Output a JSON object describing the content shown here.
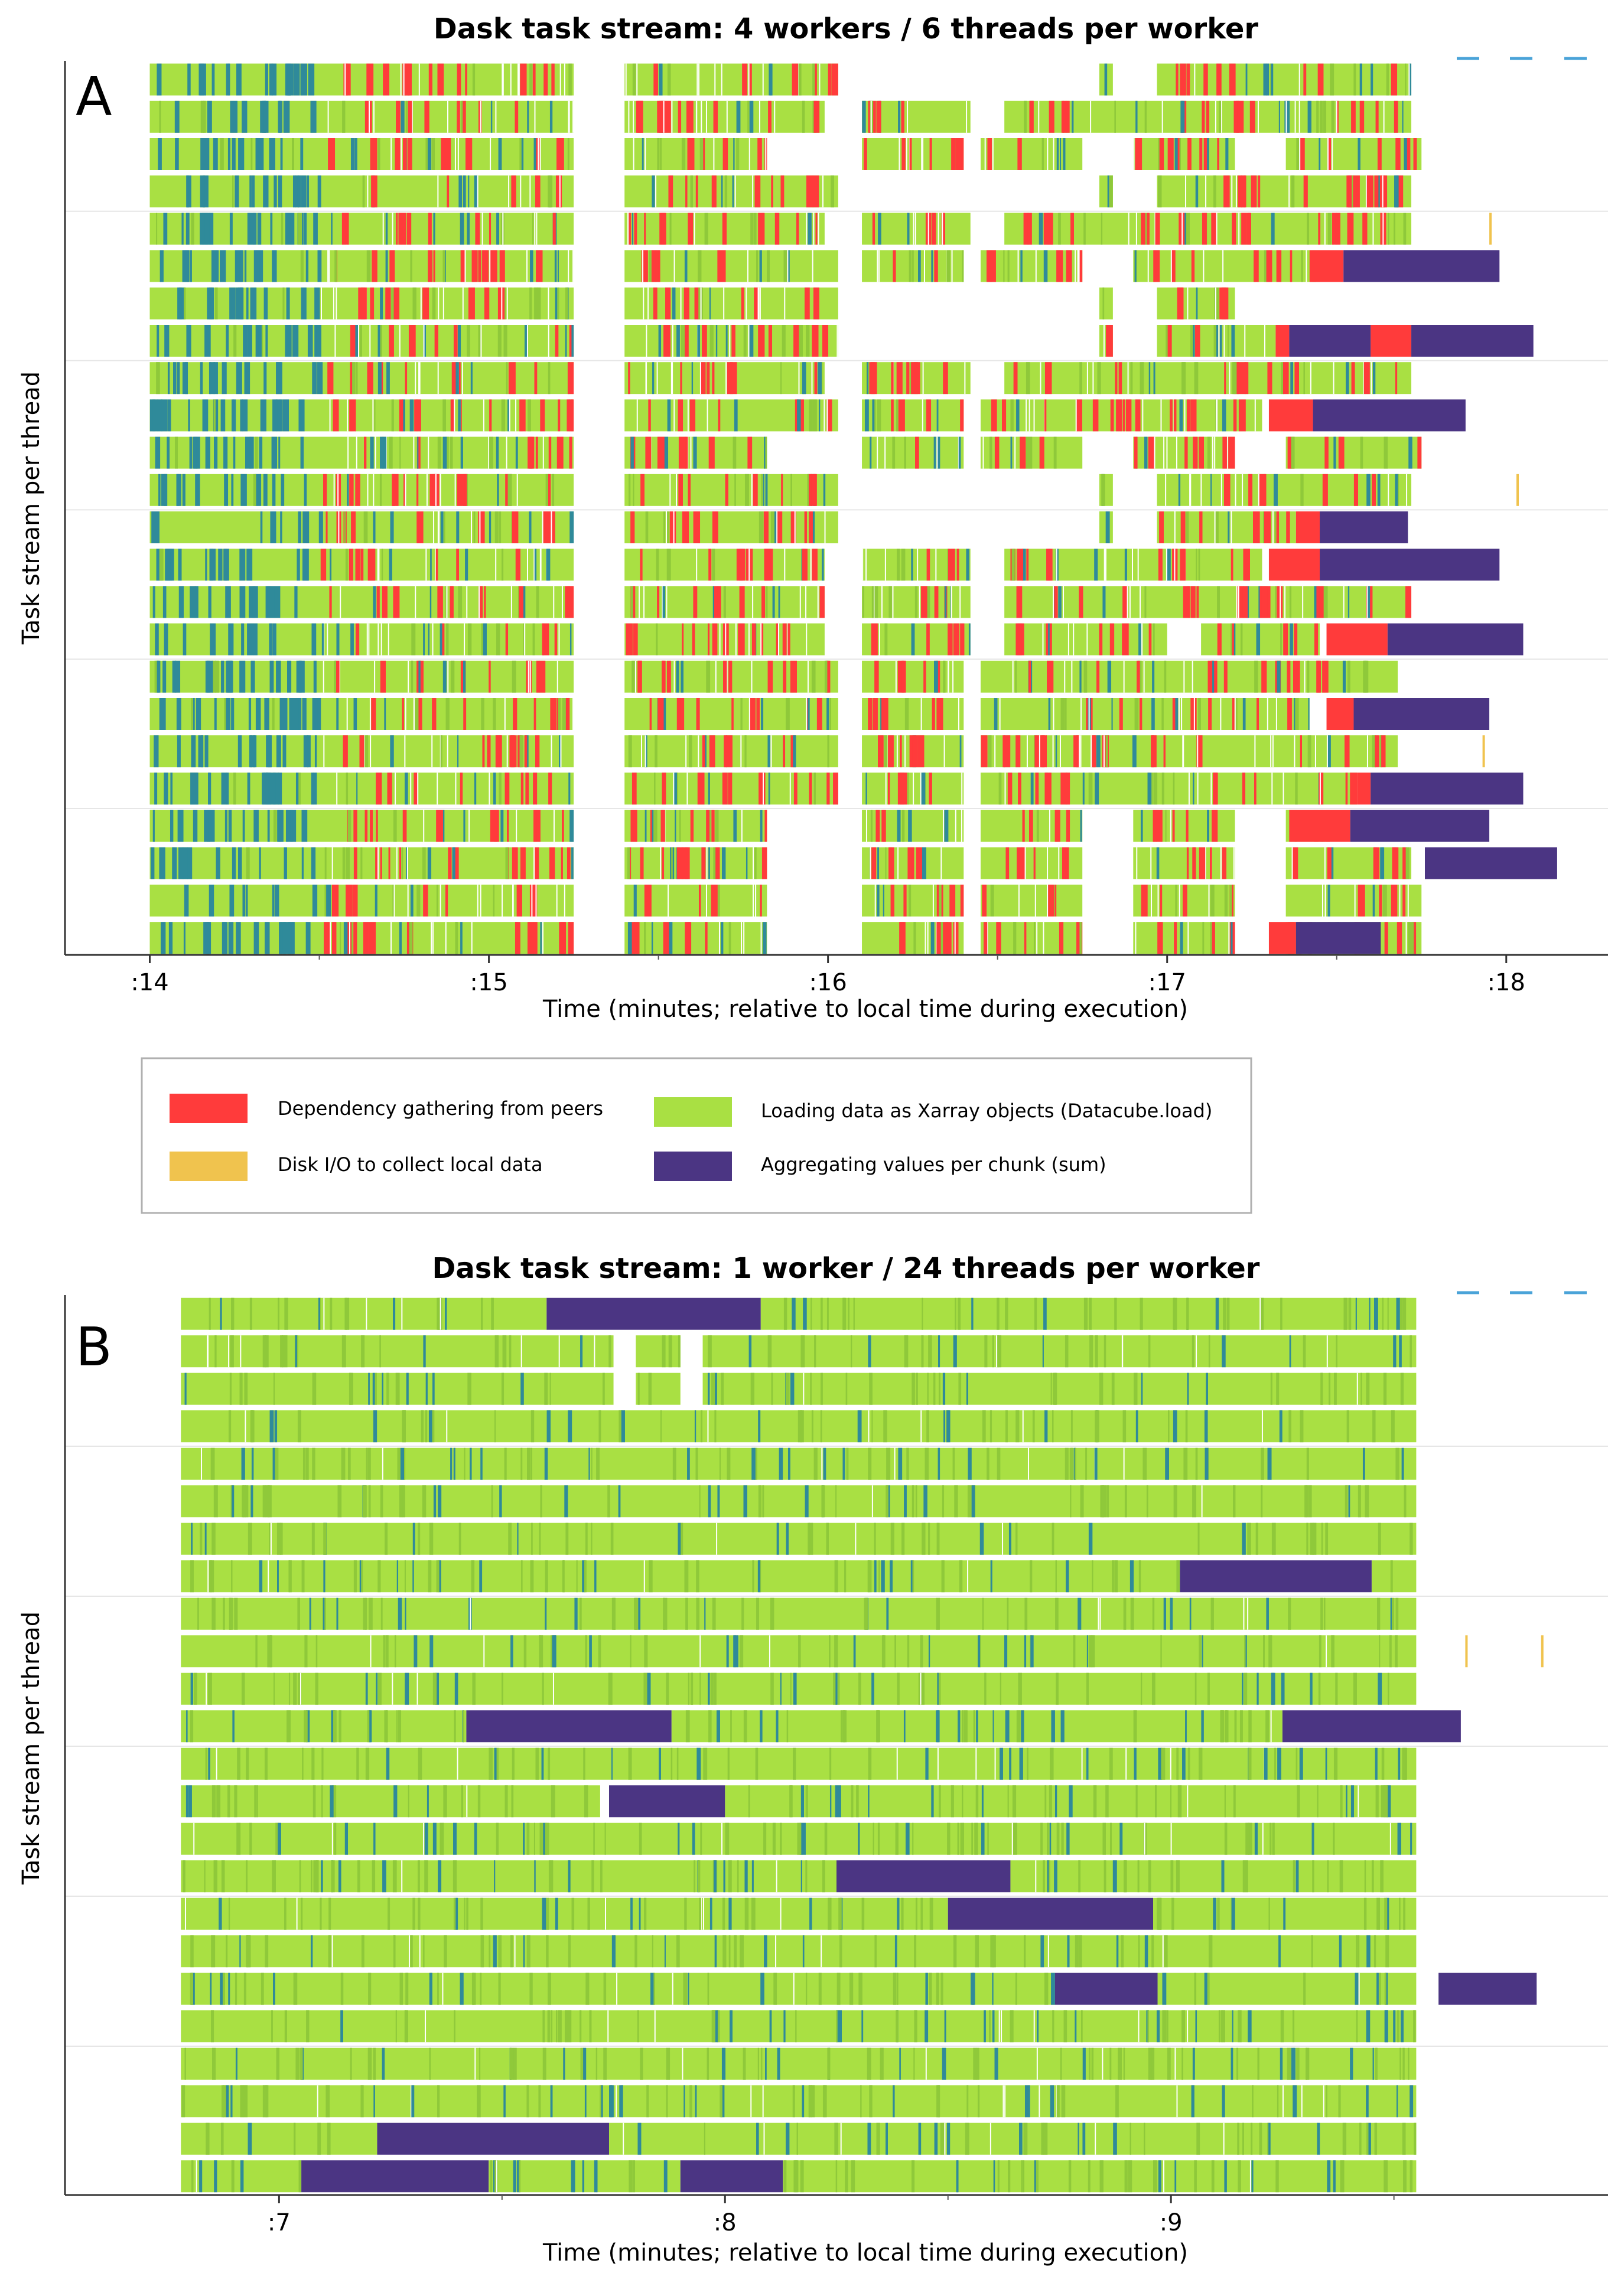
{
  "legend": {
    "items": [
      {
        "label": "Dependency gathering from peers",
        "color": "#ff3b3b"
      },
      {
        "label": "Disk I/O to collect local data",
        "color": "#f0c34e"
      },
      {
        "label": "Loading data as Xarray objects (Datacube.load)",
        "color": "#a9e043"
      },
      {
        "label": "Aggregating values per chunk  (sum)",
        "color": "#4b3583"
      }
    ]
  },
  "colors": {
    "load": "#a9e043",
    "load_dark": "#8fc93a",
    "transfer": "#ff3b3b",
    "disk": "#f0c34e",
    "sum": "#4b3583",
    "other": "#2f8a9a",
    "axis": "#333333",
    "grid": "#e6e6e6"
  },
  "chart_data": [
    {
      "id": "A",
      "type": "bar",
      "title": "Dask task stream: 4 workers / 6 threads per worker",
      "panel_label": "A",
      "xlabel": "Time (minutes; relative to local time during execution)",
      "ylabel": "Task stream per thread",
      "xlim": [
        13.75,
        18.3
      ],
      "xticks": [
        14,
        15,
        16,
        17,
        18
      ],
      "xtick_labels": [
        ":14",
        ":15",
        ":16",
        ":17",
        ":18"
      ],
      "rows": 24,
      "load_segments": [
        [
          [
            14.0,
            15.25
          ],
          [
            15.4,
            16.03
          ],
          [
            16.8,
            16.84
          ],
          [
            16.97,
            17.72
          ]
        ],
        [
          [
            14.0,
            15.25
          ],
          [
            15.4,
            15.99
          ],
          [
            16.1,
            16.42
          ],
          [
            16.52,
            17.72
          ]
        ],
        [
          [
            14.0,
            15.25
          ],
          [
            15.4,
            15.82
          ],
          [
            16.1,
            16.4
          ],
          [
            16.45,
            16.75
          ],
          [
            16.9,
            17.2
          ],
          [
            17.35,
            17.75
          ]
        ],
        [
          [
            14.0,
            15.25
          ],
          [
            15.4,
            16.03
          ],
          [
            16.8,
            16.84
          ],
          [
            16.97,
            17.72
          ]
        ],
        [
          [
            14.0,
            15.25
          ],
          [
            15.4,
            15.99
          ],
          [
            16.1,
            16.42
          ],
          [
            16.52,
            17.72
          ]
        ],
        [
          [
            14.0,
            15.25
          ],
          [
            15.4,
            16.03
          ],
          [
            16.1,
            16.4
          ],
          [
            16.45,
            16.75
          ],
          [
            16.9,
            17.45
          ]
        ],
        [
          [
            14.0,
            15.25
          ],
          [
            15.4,
            16.03
          ],
          [
            16.8,
            16.84
          ],
          [
            16.97,
            17.2
          ]
        ],
        [
          [
            14.0,
            15.25
          ],
          [
            15.4,
            16.03
          ],
          [
            16.8,
            16.84
          ],
          [
            16.97,
            17.32
          ]
        ],
        [
          [
            14.0,
            15.25
          ],
          [
            15.4,
            15.99
          ],
          [
            16.1,
            16.42
          ],
          [
            16.52,
            17.72
          ]
        ],
        [
          [
            14.0,
            15.25
          ],
          [
            15.4,
            16.03
          ],
          [
            16.1,
            16.4
          ],
          [
            16.45,
            17.28
          ]
        ],
        [
          [
            14.0,
            15.25
          ],
          [
            15.4,
            15.82
          ],
          [
            16.1,
            16.4
          ],
          [
            16.45,
            16.75
          ],
          [
            16.9,
            17.2
          ],
          [
            17.35,
            17.75
          ]
        ],
        [
          [
            14.0,
            15.25
          ],
          [
            15.4,
            16.03
          ],
          [
            16.8,
            16.84
          ],
          [
            16.97,
            17.72
          ]
        ],
        [
          [
            14.0,
            15.25
          ],
          [
            15.4,
            16.03
          ],
          [
            16.8,
            16.84
          ],
          [
            16.97,
            17.38
          ]
        ],
        [
          [
            14.0,
            15.25
          ],
          [
            15.4,
            15.99
          ],
          [
            16.1,
            16.42
          ],
          [
            16.52,
            17.28
          ]
        ],
        [
          [
            14.0,
            15.25
          ],
          [
            15.4,
            15.99
          ],
          [
            16.1,
            16.42
          ],
          [
            16.52,
            17.72
          ]
        ],
        [
          [
            14.0,
            15.25
          ],
          [
            15.4,
            15.99
          ],
          [
            16.1,
            16.42
          ],
          [
            16.52,
            17.0
          ],
          [
            17.1,
            17.45
          ]
        ],
        [
          [
            14.0,
            15.25
          ],
          [
            15.4,
            16.03
          ],
          [
            16.1,
            16.4
          ],
          [
            16.45,
            17.68
          ]
        ],
        [
          [
            14.0,
            15.25
          ],
          [
            15.4,
            16.03
          ],
          [
            16.1,
            16.4
          ],
          [
            16.45,
            17.42
          ]
        ],
        [
          [
            14.0,
            15.25
          ],
          [
            15.4,
            16.03
          ],
          [
            16.1,
            16.4
          ],
          [
            16.45,
            17.68
          ]
        ],
        [
          [
            14.0,
            15.25
          ],
          [
            15.4,
            16.03
          ],
          [
            16.1,
            16.4
          ],
          [
            16.45,
            17.56
          ]
        ],
        [
          [
            14.0,
            15.25
          ],
          [
            15.4,
            15.82
          ],
          [
            16.1,
            16.4
          ],
          [
            16.45,
            16.75
          ],
          [
            16.9,
            17.2
          ],
          [
            17.35,
            17.48
          ]
        ],
        [
          [
            14.0,
            15.25
          ],
          [
            15.4,
            15.82
          ],
          [
            16.1,
            16.4
          ],
          [
            16.45,
            16.75
          ],
          [
            16.9,
            17.2
          ],
          [
            17.35,
            17.72
          ]
        ],
        [
          [
            14.0,
            15.25
          ],
          [
            15.4,
            15.82
          ],
          [
            16.1,
            16.4
          ],
          [
            16.45,
            16.75
          ],
          [
            16.9,
            17.2
          ],
          [
            17.35,
            17.75
          ]
        ],
        [
          [
            14.0,
            15.25
          ],
          [
            15.4,
            15.82
          ],
          [
            16.1,
            16.4
          ],
          [
            16.45,
            16.75
          ],
          [
            16.9,
            17.2
          ],
          [
            17.35,
            17.75
          ]
        ]
      ],
      "sum_segments": [
        {
          "row": 5,
          "start": 17.52,
          "end": 17.98
        },
        {
          "row": 7,
          "start": 17.36,
          "end": 17.6
        },
        {
          "row": 7,
          "start": 17.72,
          "end": 18.08
        },
        {
          "row": 9,
          "start": 17.43,
          "end": 17.88
        },
        {
          "row": 12,
          "start": 17.45,
          "end": 17.71
        },
        {
          "row": 13,
          "start": 17.45,
          "end": 17.98
        },
        {
          "row": 15,
          "start": 17.65,
          "end": 18.05
        },
        {
          "row": 17,
          "start": 17.55,
          "end": 17.95
        },
        {
          "row": 19,
          "start": 17.6,
          "end": 18.05
        },
        {
          "row": 20,
          "start": 17.54,
          "end": 17.95
        },
        {
          "row": 21,
          "start": 17.76,
          "end": 18.15
        },
        {
          "row": 23,
          "start": 17.38,
          "end": 17.63
        }
      ],
      "transfer_blocks": [
        {
          "row": 5,
          "start": 17.42,
          "end": 17.52
        },
        {
          "row": 7,
          "start": 17.6,
          "end": 17.72
        },
        {
          "row": 7,
          "start": 17.32,
          "end": 17.36
        },
        {
          "row": 9,
          "start": 17.3,
          "end": 17.43
        },
        {
          "row": 12,
          "start": 17.38,
          "end": 17.45
        },
        {
          "row": 13,
          "start": 17.3,
          "end": 17.45
        },
        {
          "row": 15,
          "start": 17.47,
          "end": 17.65
        },
        {
          "row": 17,
          "start": 17.47,
          "end": 17.55
        },
        {
          "row": 19,
          "start": 17.56,
          "end": 17.6
        },
        {
          "row": 20,
          "start": 17.36,
          "end": 17.54
        },
        {
          "row": 23,
          "start": 17.3,
          "end": 17.38
        }
      ]
    },
    {
      "id": "B",
      "type": "bar",
      "title": "Dask task stream: 1 worker / 24 threads per worker",
      "panel_label": "B",
      "xlabel": "Time (minutes; relative to local time during execution)",
      "ylabel": "Task stream per thread",
      "xlim": [
        6.52,
        9.98
      ],
      "xticks": [
        7,
        8,
        9
      ],
      "xtick_labels": [
        ":7",
        ":8",
        ":9"
      ],
      "rows": 24,
      "load_segments": [
        [
          [
            6.78,
            7.6
          ],
          [
            8.08,
            9.55
          ]
        ],
        [
          [
            6.78,
            7.75
          ],
          [
            7.8,
            7.9
          ],
          [
            7.95,
            9.55
          ]
        ],
        [
          [
            6.78,
            7.75
          ],
          [
            7.8,
            7.9
          ],
          [
            7.95,
            9.55
          ]
        ],
        [
          [
            6.78,
            9.55
          ]
        ],
        [
          [
            6.78,
            9.55
          ]
        ],
        [
          [
            6.78,
            9.55
          ]
        ],
        [
          [
            6.78,
            9.55
          ]
        ],
        [
          [
            6.78,
            9.02
          ],
          [
            9.45,
            9.55
          ]
        ],
        [
          [
            6.78,
            9.55
          ]
        ],
        [
          [
            6.78,
            9.55
          ]
        ],
        [
          [
            6.78,
            9.55
          ]
        ],
        [
          [
            6.78,
            7.42
          ],
          [
            7.88,
            9.25
          ]
        ],
        [
          [
            6.78,
            9.55
          ]
        ],
        [
          [
            6.78,
            7.72
          ],
          [
            8.0,
            9.55
          ]
        ],
        [
          [
            6.78,
            9.55
          ]
        ],
        [
          [
            6.78,
            8.25
          ],
          [
            8.64,
            9.55
          ]
        ],
        [
          [
            6.78,
            8.5
          ],
          [
            8.96,
            9.55
          ]
        ],
        [
          [
            6.78,
            9.55
          ]
        ],
        [
          [
            6.78,
            8.74
          ],
          [
            8.97,
            9.55
          ]
        ],
        [
          [
            6.78,
            9.55
          ]
        ],
        [
          [
            6.78,
            9.55
          ]
        ],
        [
          [
            6.78,
            9.55
          ]
        ],
        [
          [
            6.78,
            7.22
          ],
          [
            7.74,
            9.55
          ]
        ],
        [
          [
            6.78,
            7.05
          ],
          [
            7.47,
            7.9
          ],
          [
            8.13,
            9.55
          ]
        ]
      ],
      "sum_segments": [
        {
          "row": 0,
          "start": 7.6,
          "end": 8.08
        },
        {
          "row": 7,
          "start": 9.02,
          "end": 9.45
        },
        {
          "row": 11,
          "start": 7.42,
          "end": 7.88
        },
        {
          "row": 11,
          "start": 9.25,
          "end": 9.65
        },
        {
          "row": 13,
          "start": 7.74,
          "end": 8.0
        },
        {
          "row": 15,
          "start": 8.25,
          "end": 8.64
        },
        {
          "row": 16,
          "start": 8.5,
          "end": 8.96
        },
        {
          "row": 18,
          "start": 8.74,
          "end": 8.97
        },
        {
          "row": 18,
          "start": 9.6,
          "end": 9.82
        },
        {
          "row": 22,
          "start": 7.22,
          "end": 7.74
        },
        {
          "row": 23,
          "start": 7.05,
          "end": 7.47
        },
        {
          "row": 23,
          "start": 7.9,
          "end": 8.13
        }
      ],
      "transfer_blocks": []
    }
  ]
}
